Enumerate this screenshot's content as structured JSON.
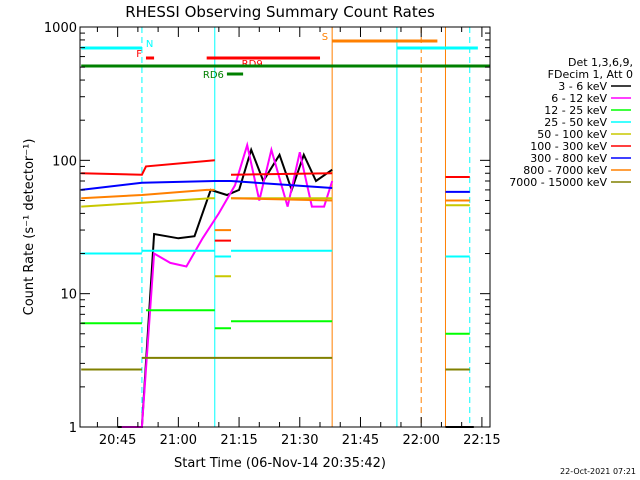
{
  "chart_data": {
    "type": "line",
    "title": "RHESSI Observing Summary Count Rates",
    "xlabel": "Start Time (06-Nov-14 20:35:42)",
    "ylabel": "Count Rate (s⁻¹ detector⁻¹)",
    "yscale": "log",
    "ylim": [
      1,
      1000
    ],
    "xlim": [
      "20:35:42",
      "22:17:00"
    ],
    "x_ticks": [
      "20:45",
      "21:00",
      "21:15",
      "21:30",
      "21:45",
      "22:00",
      "22:15"
    ],
    "y_ticks": [
      "1",
      "10",
      "100",
      "1000"
    ],
    "timestamp": "22-Oct-2021 07:21",
    "legend": {
      "position": "right",
      "header": [
        "Det 1,3,6,9,",
        "FDecim 1, Att 0"
      ]
    },
    "series": [
      {
        "name": "3 - 6 keV",
        "color": "#000000",
        "segments": [
          {
            "t": [
              "20:45",
              "20:51",
              "20:54",
              "21:00",
              "21:04",
              "21:08",
              "21:12",
              "21:15",
              "21:18",
              "21:21",
              "21:25",
              "21:28",
              "21:31",
              "21:34",
              "21:38"
            ],
            "v": [
              1,
              1,
              28,
              26,
              27,
              60,
              55,
              60,
              120,
              70,
              110,
              60,
              110,
              70,
              85
            ]
          },
          {
            "t": [
              "22:06",
              "22:13"
            ],
            "v": [
              1,
              1
            ]
          }
        ]
      },
      {
        "name": "6 - 12 keV",
        "color": "#ff00ff",
        "segments": [
          {
            "t": [
              "20:46",
              "20:51",
              "20:54",
              "20:58",
              "21:02",
              "21:06",
              "21:10",
              "21:14",
              "21:17",
              "21:20",
              "21:23",
              "21:27",
              "21:30",
              "21:33",
              "21:36",
              "21:38"
            ],
            "v": [
              1,
              1,
              20,
              17,
              16,
              26,
              40,
              65,
              130,
              50,
              120,
              45,
              115,
              45,
              45,
              70
            ]
          }
        ]
      },
      {
        "name": "12 - 25 keV",
        "color": "#00ff00",
        "segments": [
          {
            "t": [
              "20:36",
              "20:51"
            ],
            "v": [
              6,
              6
            ]
          },
          {
            "t": [
              "20:52",
              "21:09"
            ],
            "v": [
              7.5,
              7.5
            ]
          },
          {
            "t": [
              "21:09",
              "21:13"
            ],
            "v": [
              5.5,
              5.5
            ]
          },
          {
            "t": [
              "21:13",
              "21:38"
            ],
            "v": [
              6.2,
              6.2
            ]
          },
          {
            "t": [
              "22:06",
              "22:12"
            ],
            "v": [
              5,
              5
            ]
          }
        ]
      },
      {
        "name": "25 - 50 keV",
        "color": "#00ffff",
        "segments": [
          {
            "t": [
              "20:36",
              "20:51"
            ],
            "v": [
              20,
              20
            ]
          },
          {
            "t": [
              "20:51",
              "21:09"
            ],
            "v": [
              21,
              21
            ]
          },
          {
            "t": [
              "21:09",
              "21:13"
            ],
            "v": [
              19,
              19
            ]
          },
          {
            "t": [
              "21:13",
              "21:38"
            ],
            "v": [
              21,
              21
            ]
          },
          {
            "t": [
              "22:06",
              "22:12"
            ],
            "v": [
              19,
              19
            ]
          }
        ]
      },
      {
        "name": "50 - 100 keV",
        "color": "#c8c800",
        "segments": [
          {
            "t": [
              "20:36",
              "20:51",
              "21:08",
              "21:09"
            ],
            "v": [
              45,
              48,
              52,
              52
            ]
          },
          {
            "t": [
              "21:09",
              "21:13"
            ],
            "v": [
              13.5,
              13.5
            ]
          },
          {
            "t": [
              "21:13",
              "21:38"
            ],
            "v": [
              52,
              52
            ]
          },
          {
            "t": [
              "22:06",
              "22:12"
            ],
            "v": [
              46,
              46
            ]
          }
        ]
      },
      {
        "name": "100 - 300 keV",
        "color": "#ff0000",
        "segments": [
          {
            "t": [
              "20:36",
              "20:51",
              "20:52",
              "21:09"
            ],
            "v": [
              80,
              78,
              90,
              100
            ]
          },
          {
            "t": [
              "21:09",
              "21:13"
            ],
            "v": [
              25,
              25
            ]
          },
          {
            "t": [
              "21:13",
              "21:38"
            ],
            "v": [
              78,
              80
            ]
          },
          {
            "t": [
              "22:06",
              "22:12"
            ],
            "v": [
              75,
              75
            ]
          }
        ]
      },
      {
        "name": "300 - 800 keV",
        "color": "#0000ff",
        "segments": [
          {
            "t": [
              "20:36",
              "20:51",
              "21:09",
              "21:13",
              "21:38"
            ],
            "v": [
              60,
              68,
              70,
              70,
              62
            ]
          },
          {
            "t": [
              "22:06",
              "22:12"
            ],
            "v": [
              58,
              58
            ]
          }
        ]
      },
      {
        "name": "800 - 7000 keV",
        "color": "#ff8000",
        "segments": [
          {
            "t": [
              "20:36",
              "20:51",
              "21:07",
              "21:09"
            ],
            "v": [
              52,
              55,
              60,
              60
            ]
          },
          {
            "t": [
              "21:09",
              "21:13"
            ],
            "v": [
              30,
              30
            ]
          },
          {
            "t": [
              "21:13",
              "21:38"
            ],
            "v": [
              52,
              50
            ]
          },
          {
            "t": [
              "22:06",
              "22:12"
            ],
            "v": [
              50,
              50
            ]
          }
        ]
      },
      {
        "name": "7000 - 15000 keV",
        "color": "#808000",
        "segments": [
          {
            "t": [
              "20:36",
              "20:51"
            ],
            "v": [
              2.7,
              2.7
            ]
          },
          {
            "t": [
              "20:51",
              "21:38"
            ],
            "v": [
              3.3,
              3.3
            ]
          },
          {
            "t": [
              "22:06",
              "22:12"
            ],
            "v": [
              2.7,
              2.7
            ]
          }
        ]
      }
    ],
    "flag_bars": [
      {
        "label": "N",
        "color": "#00ffff",
        "segments": [
          [
            "20:36",
            "20:51"
          ],
          [
            "21:54",
            "22:14"
          ]
        ]
      },
      {
        "label": "F",
        "color": "#ff0000",
        "segments": [
          [
            "20:52",
            "20:54"
          ]
        ]
      },
      {
        "label": "RD9",
        "color": "#ff0000",
        "segments": [
          [
            "21:07",
            "21:35"
          ]
        ]
      },
      {
        "label": "S",
        "color": "#ff8000",
        "segments": [
          [
            "21:38",
            "22:04"
          ]
        ]
      },
      {
        "label": "RD6",
        "color": "#008000",
        "segments": [
          [
            "21:12",
            "21:16"
          ]
        ]
      },
      {
        "label": "",
        "color": "#008000",
        "segments": [
          [
            "20:36",
            "22:17"
          ]
        ]
      }
    ],
    "vertical_markers": [
      {
        "t": "20:51",
        "color": "#00ffff",
        "style": "dashed"
      },
      {
        "t": "21:09",
        "color": "#00ffff",
        "style": "solid"
      },
      {
        "t": "21:38",
        "color": "#ff8000",
        "style": "solid"
      },
      {
        "t": "21:54",
        "color": "#00ffff",
        "style": "solid"
      },
      {
        "t": "22:00",
        "color": "#ff8000",
        "style": "dashed"
      },
      {
        "t": "22:06",
        "color": "#ff8000",
        "style": "solid"
      },
      {
        "t": "22:12",
        "color": "#00ffff",
        "style": "dashed"
      }
    ]
  }
}
